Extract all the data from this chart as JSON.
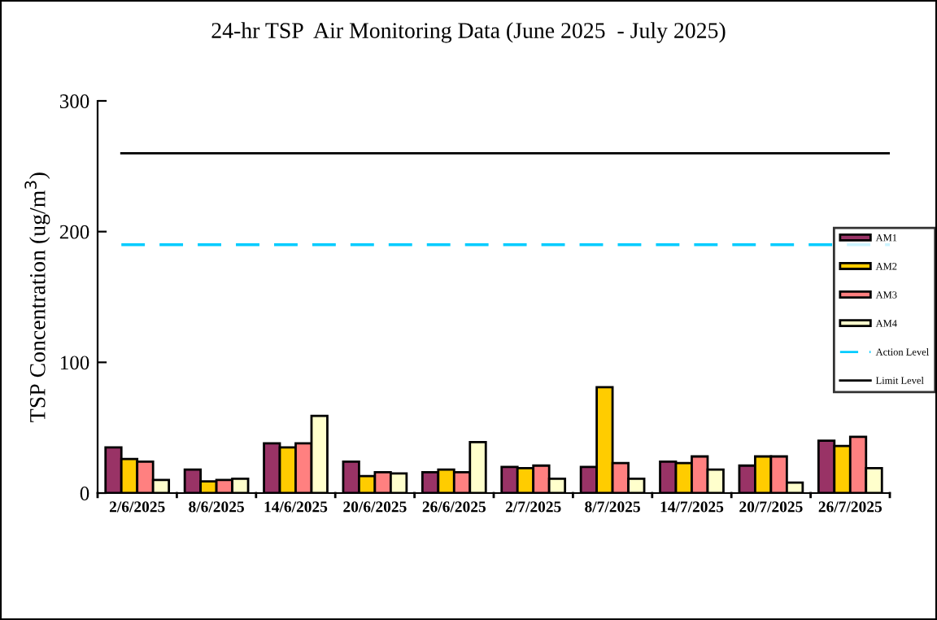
{
  "chart_data": {
    "type": "bar",
    "title": "24-hr TSP  Air Monitoring Data (June 2025  - July 2025)",
    "ylabel": "TSP Concentration (ug/m$^{3}$)",
    "categories": [
      "2/6/2025",
      "8/6/2025",
      "14/6/2025",
      "20/6/2025",
      "26/6/2025",
      "2/7/2025",
      "8/7/2025",
      "14/7/2025",
      "20/7/2025",
      "26/7/2025"
    ],
    "series": [
      {
        "name": "AM1",
        "color": "#993366",
        "values": [
          35,
          18,
          38,
          24,
          16,
          20,
          20,
          24,
          21,
          40
        ]
      },
      {
        "name": "AM2",
        "color": "#ffcc00",
        "values": [
          26,
          9,
          35,
          13,
          18,
          19,
          81,
          23,
          28,
          36
        ]
      },
      {
        "name": "AM3",
        "color": "#ff8080",
        "values": [
          24,
          10,
          38,
          16,
          16,
          21,
          23,
          28,
          28,
          43
        ]
      },
      {
        "name": "AM4",
        "color": "#ffffcc",
        "values": [
          10,
          11,
          59,
          15,
          39,
          11,
          11,
          18,
          8,
          19
        ]
      }
    ],
    "ref_lines": [
      {
        "axis": "y",
        "value": 190,
        "label": "Action Level",
        "color": "#00ccff",
        "line_style": "dashed"
      },
      {
        "axis": "y",
        "value": 260,
        "label": "Limit Level",
        "color": "#000000",
        "line_style": "solid"
      }
    ],
    "ylim": [
      0,
      300
    ],
    "yticks": [
      0,
      100,
      200,
      300
    ],
    "grid": false,
    "legend": "right"
  }
}
